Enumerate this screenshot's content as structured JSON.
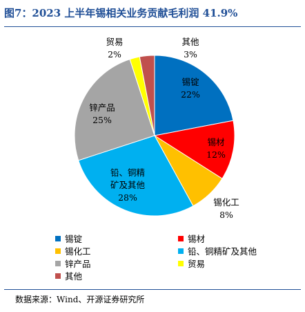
{
  "chart_data": {
    "type": "pie",
    "title": "图7：2023 上半年锡相关业务贡献毛利润 41.9%",
    "categories": [
      "锡锭",
      "锡材",
      "锡化工",
      "铅、铜精矿及其他",
      "锌产品",
      "贸易",
      "其他"
    ],
    "values": [
      22,
      12,
      8,
      28,
      25,
      2,
      3
    ],
    "value_labels": [
      "22%",
      "12%",
      "8%",
      "28%",
      "25%",
      "2%",
      "3%"
    ],
    "colors": [
      "#0070c0",
      "#ff0000",
      "#ffc000",
      "#00b0f0",
      "#a5a5a5",
      "#ffff00",
      "#c0504d"
    ],
    "legend": "bottom"
  },
  "source": "数据来源：Wind、开源证券研究所"
}
